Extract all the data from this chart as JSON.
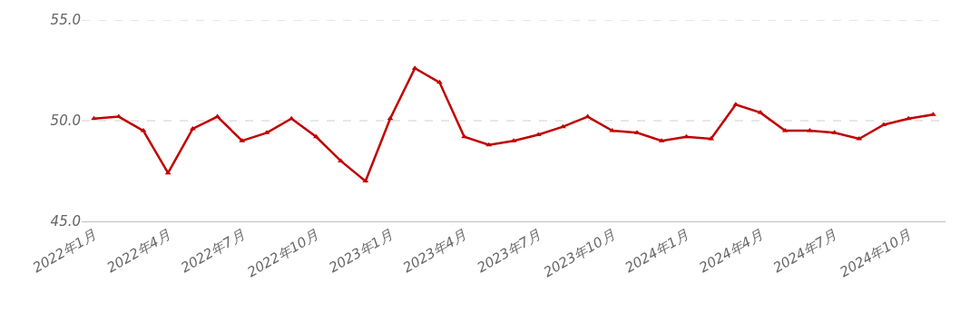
{
  "chart_data": {
    "type": "line",
    "categories": [
      "2022年1月",
      null,
      null,
      "2022年4月",
      null,
      null,
      "2022年7月",
      null,
      null,
      "2022年10月",
      null,
      null,
      "2023年1月",
      null,
      null,
      "2023年4月",
      null,
      null,
      "2023年7月",
      null,
      null,
      "2023年10月",
      null,
      null,
      "2024年1月",
      null,
      null,
      "2024年4月",
      null,
      null,
      "2024年7月",
      null,
      null,
      "2024年10月",
      null
    ],
    "series": [
      {
        "color": "#c00000",
        "values": [
          50.1,
          50.2,
          49.5,
          47.4,
          49.6,
          50.2,
          49.0,
          49.4,
          50.1,
          49.2,
          48.0,
          47.0,
          50.1,
          52.6,
          51.9,
          49.2,
          48.8,
          49.0,
          49.3,
          49.7,
          50.2,
          49.5,
          49.4,
          49.0,
          49.2,
          49.1,
          50.8,
          50.4,
          49.5,
          49.5,
          49.4,
          49.1,
          49.8,
          50.1,
          50.3
        ]
      }
    ],
    "ylim": [
      45,
      55
    ],
    "yticks": [
      {
        "value": 45,
        "label": "45.0"
      },
      {
        "value": 50,
        "label": "50.0"
      },
      {
        "value": 55,
        "label": "55.0"
      }
    ],
    "grid": "y",
    "marker": "triangle",
    "line_style": "solid"
  }
}
